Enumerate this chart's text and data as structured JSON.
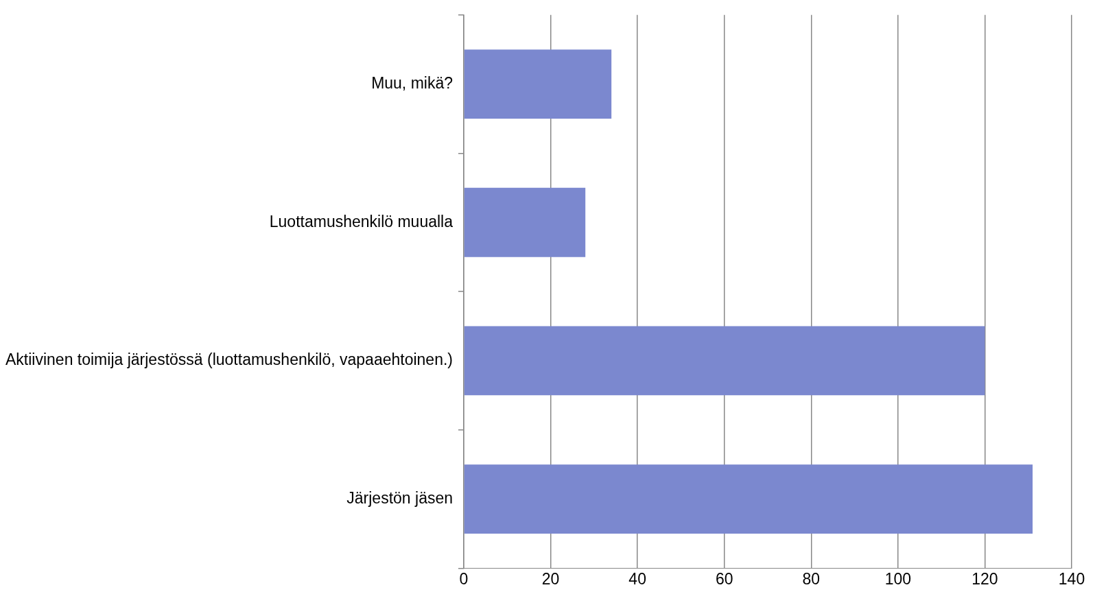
{
  "chart_data": {
    "type": "bar",
    "orientation": "horizontal",
    "categories": [
      "Muu, mikä?",
      "Luottamushenkilö muualla",
      "Aktiivinen toimija järjestössä (luottamushenkilö, vapaaehtoinen.)",
      "Järjestön jäsen"
    ],
    "values": [
      34,
      28,
      120,
      131
    ],
    "color": "#7b88cf",
    "xlim": [
      0,
      140
    ],
    "xticks": [
      0,
      20,
      40,
      60,
      80,
      100,
      120,
      140
    ],
    "grid": "x",
    "legend": false
  }
}
